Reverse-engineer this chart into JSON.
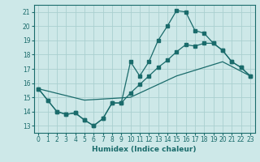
{
  "xlabel": "Humidex (Indice chaleur)",
  "bg_color": "#cde8e8",
  "grid_color": "#aacfcf",
  "line_color": "#1a6b6b",
  "xlim": [
    -0.5,
    23.5
  ],
  "ylim": [
    12.5,
    21.5
  ],
  "yticks": [
    13,
    14,
    15,
    16,
    17,
    18,
    19,
    20,
    21
  ],
  "xticks": [
    0,
    1,
    2,
    3,
    4,
    5,
    6,
    7,
    8,
    9,
    10,
    11,
    12,
    13,
    14,
    15,
    16,
    17,
    18,
    19,
    20,
    21,
    22,
    23
  ],
  "line1_x": [
    0,
    1,
    2,
    3,
    4,
    5,
    6,
    7,
    8,
    9,
    10,
    11,
    12,
    13,
    14,
    15,
    16,
    17,
    18,
    19,
    20,
    21,
    22,
    23
  ],
  "line1_y": [
    15.6,
    14.8,
    14.0,
    13.8,
    13.9,
    13.4,
    13.0,
    13.5,
    14.6,
    14.6,
    17.5,
    16.5,
    17.5,
    19.0,
    20.0,
    21.1,
    21.0,
    19.7,
    19.5,
    18.8,
    18.3,
    17.5,
    17.1,
    16.5
  ],
  "line2_x": [
    0,
    1,
    2,
    3,
    4,
    5,
    6,
    7,
    8,
    9,
    10,
    11,
    12,
    13,
    14,
    15,
    16,
    17,
    18,
    19,
    20,
    21,
    22,
    23
  ],
  "line2_y": [
    15.6,
    14.8,
    14.0,
    13.8,
    13.9,
    13.4,
    13.0,
    13.5,
    14.6,
    14.6,
    15.3,
    15.9,
    16.5,
    17.1,
    17.6,
    18.2,
    18.7,
    18.6,
    18.8,
    18.8,
    18.3,
    17.5,
    17.1,
    16.5
  ],
  "line3_x": [
    0,
    5,
    10,
    15,
    20,
    23
  ],
  "line3_y": [
    15.6,
    14.8,
    15.0,
    16.5,
    17.5,
    16.5
  ]
}
